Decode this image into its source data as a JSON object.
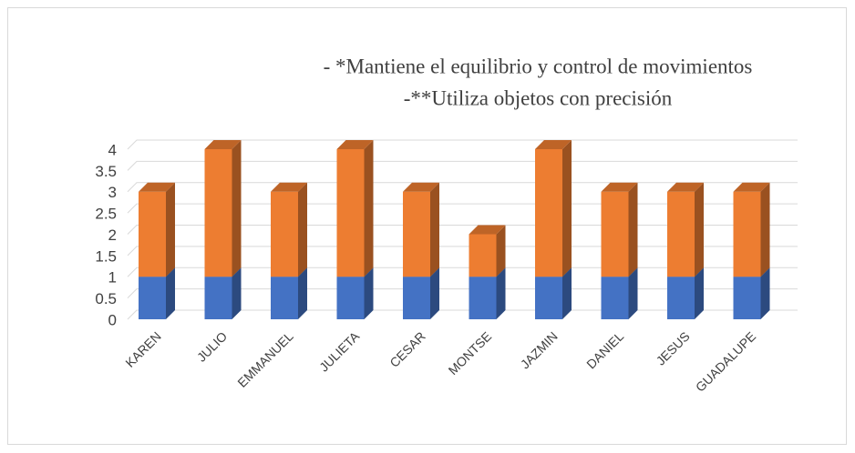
{
  "chart_data": {
    "type": "bar3d-stacked",
    "title": "- *Mantiene el equilibrio y control de movimientos",
    "subtitle": "-**Utiliza objetos con precisión",
    "categories": [
      "KAREN",
      "JULIO",
      "EMMANUEL",
      "JULIETA",
      "CESAR",
      "MONTSE",
      "JAZMIN",
      "DANIEL",
      "JESUS",
      "GUADALUPE"
    ],
    "series": [
      {
        "color": "#4472c4",
        "values": [
          1,
          1,
          1,
          1,
          1,
          1,
          1,
          1,
          1,
          1
        ]
      },
      {
        "color": "#ed7d31",
        "values": [
          2,
          3,
          2,
          3,
          2,
          1,
          3,
          2,
          2,
          2
        ]
      }
    ],
    "ylim": [
      0,
      4
    ],
    "yticks": [
      0,
      0.5,
      1,
      1.5,
      2,
      2.5,
      3,
      3.5,
      4
    ],
    "grid": true
  }
}
